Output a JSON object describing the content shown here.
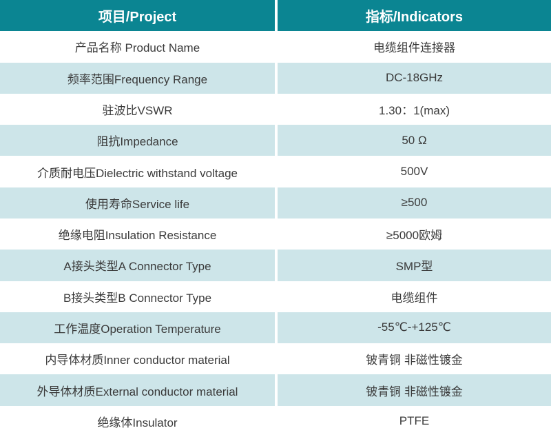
{
  "table": {
    "header": {
      "project": "项目/Project",
      "indicator": "指标/Indicators"
    },
    "rows": [
      {
        "project": "产品名称 Product Name",
        "indicator": "电缆组件连接器"
      },
      {
        "project": "频率范围Frequency Range",
        "indicator": "DC-18GHz"
      },
      {
        "project": "驻波比VSWR",
        "indicator": "1.30：1(max)"
      },
      {
        "project": "阻抗Impedance",
        "indicator": "50 Ω"
      },
      {
        "project": "介质耐电压Dielectric withstand voltage",
        "indicator": "500V"
      },
      {
        "project": "使用寿命Service life",
        "indicator": "≥500"
      },
      {
        "project": "绝缘电阻Insulation Resistance",
        "indicator": "≥5000欧姆"
      },
      {
        "project": "A接头类型A Connector Type",
        "indicator": "SMP型"
      },
      {
        "project": "B接头类型B Connector Type",
        "indicator": "电缆组件"
      },
      {
        "project": "工作温度Operation Temperature",
        "indicator": "-55℃-+125℃"
      },
      {
        "project": "内导体材质Inner conductor material",
        "indicator": "铍青铜 非磁性镀金"
      },
      {
        "project": "外导体材质External conductor material",
        "indicator": "铍青铜 非磁性镀金"
      },
      {
        "project": "绝缘体Insulator",
        "indicator": "PTFE"
      }
    ]
  },
  "colors": {
    "header_bg": "#0b8592",
    "header_text": "#ffffff",
    "row_alt_bg": "#cde5e9",
    "row_bg": "#ffffff",
    "body_text": "#3a3a3a",
    "divider": "#ffffff"
  }
}
